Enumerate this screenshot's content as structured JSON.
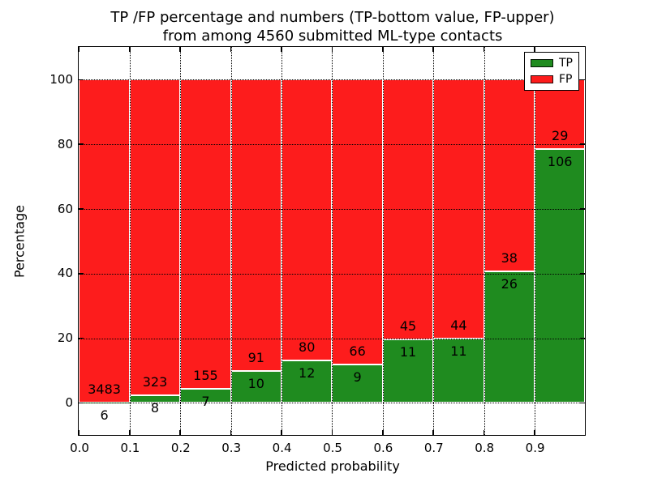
{
  "title": {
    "line1": "TP /FP percentage and numbers (TP-bottom value, FP-upper)",
    "line2": "from among 4560 submitted ML-type contacts"
  },
  "axes": {
    "xlabel": "Predicted probability",
    "ylabel": "Percentage",
    "xtick_labels": [
      "0.0",
      "0.1",
      "0.2",
      "0.3",
      "0.4",
      "0.5",
      "0.6",
      "0.7",
      "0.8",
      "0.9"
    ],
    "ytick_labels": [
      "0",
      "20",
      "40",
      "60",
      "80",
      "100"
    ]
  },
  "legend": {
    "position": "upper right",
    "entries": [
      {
        "label": "TP",
        "color": "#1f8b1f"
      },
      {
        "label": "FP",
        "color": "#fd1c1c"
      }
    ]
  },
  "chart_data": {
    "type": "bar",
    "stacked": true,
    "normalized_to_percent": true,
    "title": "TP /FP percentage and numbers (TP-bottom value, FP-upper) from among 4560 submitted ML-type contacts",
    "xlabel": "Predicted probability",
    "ylabel": "Percentage",
    "total_submitted": 4560,
    "bin_edges": [
      0.0,
      0.1,
      0.2,
      0.3,
      0.4,
      0.5,
      0.6,
      0.7,
      0.8,
      0.9,
      1.0
    ],
    "categories": [
      "0.0-0.1",
      "0.1-0.2",
      "0.2-0.3",
      "0.3-0.4",
      "0.4-0.5",
      "0.5-0.6",
      "0.6-0.7",
      "0.7-0.8",
      "0.8-0.9",
      "0.9-1.0"
    ],
    "series": [
      {
        "name": "TP",
        "color": "#1f8b1f",
        "counts": [
          6,
          8,
          7,
          10,
          12,
          9,
          11,
          11,
          26,
          106
        ]
      },
      {
        "name": "FP",
        "color": "#fd1c1c",
        "counts": [
          3483,
          323,
          155,
          91,
          80,
          66,
          45,
          44,
          38,
          29
        ]
      }
    ],
    "tp_percent_of_bin": [
      0.17,
      2.42,
      4.32,
      9.9,
      13.04,
      12.0,
      19.64,
      20.0,
      40.63,
      78.52
    ],
    "xlim": [
      0.0,
      1.0
    ],
    "ylim": [
      -10,
      110
    ],
    "xticks": [
      0.0,
      0.1,
      0.2,
      0.3,
      0.4,
      0.5,
      0.6,
      0.7,
      0.8,
      0.9
    ],
    "yticks": [
      0,
      20,
      40,
      60,
      80,
      100
    ],
    "grid": true,
    "grid_style": "dotted",
    "bar_edge_color": "#ffffff"
  }
}
